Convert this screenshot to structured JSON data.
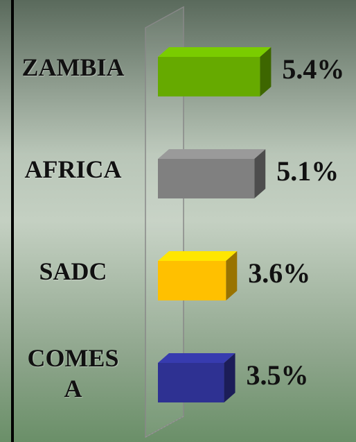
{
  "chart_data": {
    "type": "bar3d-horizontal",
    "categories": [
      "ZAMBIA",
      "AFRICA",
      "SADC",
      "COMESA"
    ],
    "values": [
      5.4,
      5.1,
      3.6,
      3.5
    ],
    "value_labels": [
      "5.4%",
      "5.1%",
      "3.6%",
      "3.5%"
    ],
    "colors": [
      "#66aa00",
      "#808080",
      "#ffc000",
      "#2e3192"
    ]
  }
}
